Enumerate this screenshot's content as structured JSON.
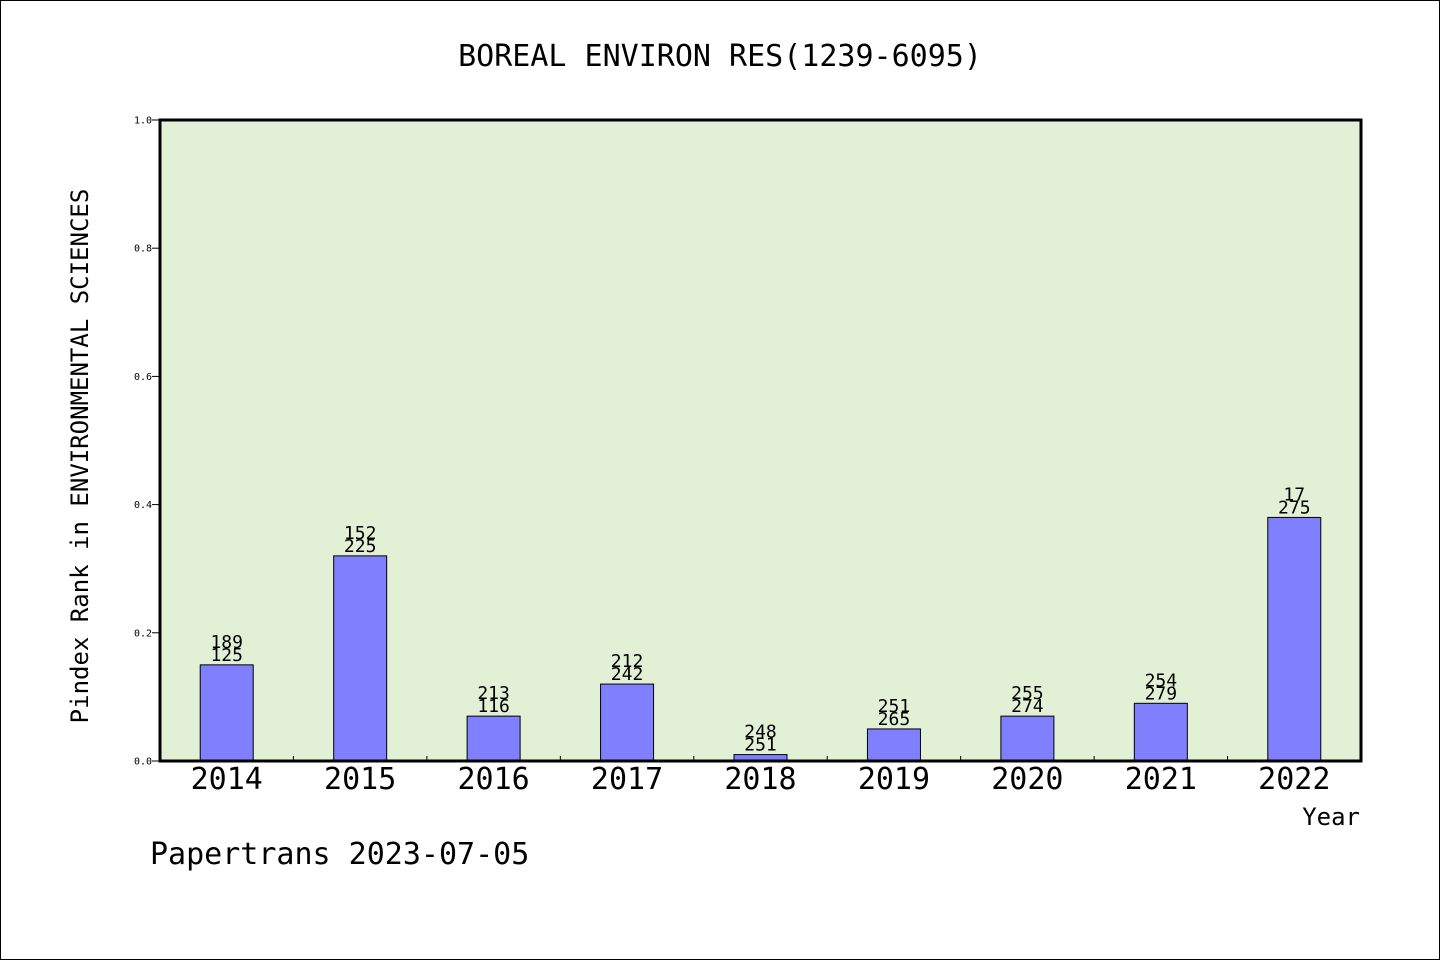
{
  "chart_data": {
    "type": "bar",
    "title": "BOREAL ENVIRON RES(1239-6095)",
    "ylabel": "Pindex Rank in ENVIRONMENTAL SCIENCES",
    "xlabel": "Year",
    "ylim": [
      0,
      1.0
    ],
    "yticks": [
      "0.0",
      "0.2",
      "0.4",
      "0.6",
      "0.8",
      "1.0"
    ],
    "ytick_values": [
      0,
      0.2,
      0.4,
      0.6,
      0.8,
      1.0
    ],
    "categories": [
      "2014",
      "2015",
      "2016",
      "2017",
      "2018",
      "2019",
      "2020",
      "2021",
      "2022"
    ],
    "values": [
      0.15,
      0.32,
      0.07,
      0.12,
      0.01,
      0.05,
      0.07,
      0.09,
      0.38
    ],
    "labels_top": [
      "189",
      "152",
      "213",
      "212",
      "248",
      "251",
      "255",
      "254",
      "17"
    ],
    "labels_bottom": [
      "125",
      "225",
      "116",
      "242",
      "251",
      "265",
      "274",
      "279",
      "275"
    ],
    "grid": false,
    "colors": {
      "bar_fill": "#8080ff",
      "plot_background": "#e2f0d6",
      "axis": "#000000"
    }
  },
  "footer": {
    "text": "Papertrans 2023-07-05"
  }
}
